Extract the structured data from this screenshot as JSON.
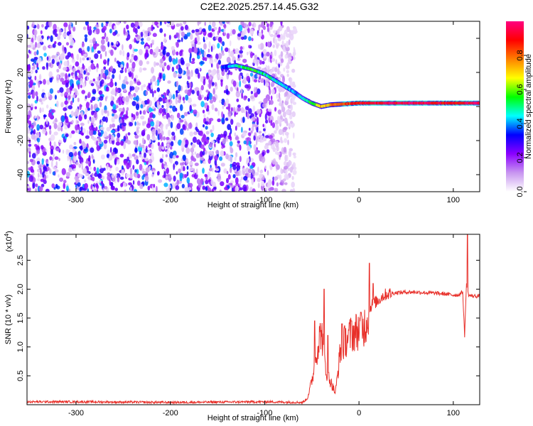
{
  "title": "C2E2.2025.257.14.45.G32",
  "chart_data": [
    {
      "type": "heatmap",
      "name": "spectrogram",
      "xlabel": "Height of straight line (km)",
      "ylabel": "Frequency (Hz)",
      "xlim": [
        -352,
        128
      ],
      "ylim": [
        -50,
        50
      ],
      "xticks": [
        -300,
        -200,
        -100,
        0,
        100
      ],
      "yticks": [
        -40,
        -20,
        0,
        20,
        40
      ],
      "colorbar": {
        "label": "Normalized spectral amplitude",
        "range": [
          0,
          1
        ],
        "ticks": [
          0.0,
          0.2,
          0.4,
          0.6,
          0.8
        ],
        "colormap": [
          "#ffffff",
          "#c896f0",
          "#8b00ff",
          "#0000ff",
          "#00ffff",
          "#00ff00",
          "#ffff00",
          "#ff8000",
          "#ff0000",
          "#ff0080"
        ]
      },
      "noise_region_x": [
        -352,
        -75
      ],
      "signal_ridge": [
        {
          "x": -145,
          "y": 23,
          "amp": 0.35
        },
        {
          "x": -130,
          "y": 24,
          "amp": 0.45
        },
        {
          "x": -115,
          "y": 22,
          "amp": 0.55
        },
        {
          "x": -100,
          "y": 19,
          "amp": 0.5
        },
        {
          "x": -85,
          "y": 14,
          "amp": 0.45
        },
        {
          "x": -70,
          "y": 9,
          "amp": 0.4
        },
        {
          "x": -60,
          "y": 5,
          "amp": 0.45
        },
        {
          "x": -50,
          "y": 2,
          "amp": 0.55
        },
        {
          "x": -40,
          "y": 0,
          "amp": 0.7
        },
        {
          "x": -30,
          "y": 1,
          "amp": 0.75
        },
        {
          "x": -15,
          "y": 1.5,
          "amp": 0.85
        },
        {
          "x": 0,
          "y": 2,
          "amp": 0.9
        },
        {
          "x": 30,
          "y": 2,
          "amp": 0.95
        },
        {
          "x": 60,
          "y": 2,
          "amp": 0.95
        },
        {
          "x": 90,
          "y": 2,
          "amp": 0.9
        },
        {
          "x": 128,
          "y": 2,
          "amp": 0.95
        }
      ]
    },
    {
      "type": "line",
      "name": "snr",
      "xlabel": "Height of straight line (km)",
      "ylabel": "SNR (10 * v/v)",
      "y_multiplier": "(x10^4)",
      "xlim": [
        -352,
        128
      ],
      "ylim": [
        0,
        2.95
      ],
      "xticks": [
        -300,
        -200,
        -100,
        0,
        100
      ],
      "yticks": [
        0.5,
        1.0,
        1.5,
        2.0,
        2.5
      ],
      "color": "#e8302a",
      "x": [
        -352,
        -300,
        -200,
        -100,
        -60,
        -55,
        -50,
        -45,
        -40,
        -35,
        -30,
        -25,
        -20,
        -15,
        -10,
        -5,
        0,
        5,
        8,
        10,
        12,
        15,
        20,
        25,
        30,
        40,
        50,
        60,
        70,
        80,
        90,
        100,
        105,
        110,
        112,
        114,
        116,
        120,
        128
      ],
      "y": [
        0.05,
        0.05,
        0.04,
        0.05,
        0.04,
        0.1,
        0.4,
        0.9,
        1.3,
        0.6,
        0.4,
        0.2,
        0.9,
        1.1,
        1.2,
        1.25,
        1.3,
        1.35,
        1.45,
        1.6,
        1.7,
        1.75,
        1.8,
        1.88,
        1.92,
        1.94,
        1.95,
        1.95,
        1.94,
        1.93,
        1.92,
        1.9,
        1.9,
        1.95,
        1.2,
        2.1,
        1.9,
        1.88,
        1.88
      ],
      "spikes": [
        {
          "x": -47,
          "y": 1.45
        },
        {
          "x": -37,
          "y": 2.0
        },
        {
          "x": -33,
          "y": 1.2
        },
        {
          "x": -18,
          "y": 1.4
        },
        {
          "x": -8,
          "y": 1.45
        },
        {
          "x": 2,
          "y": 1.6
        },
        {
          "x": 11,
          "y": 2.45
        },
        {
          "x": 15,
          "y": 2.1
        },
        {
          "x": 115,
          "y": 2.95
        }
      ]
    }
  ]
}
